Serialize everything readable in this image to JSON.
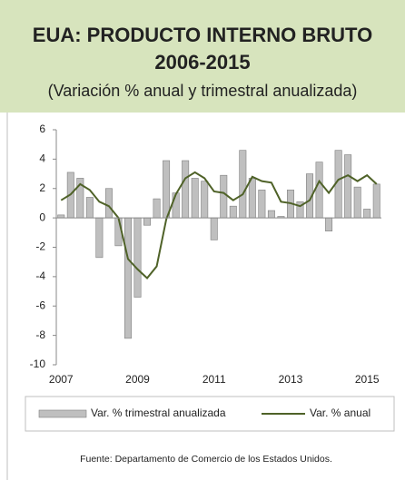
{
  "chart_data": {
    "type": "bar",
    "title": "EUA: PRODUCTO INTERNO BRUTO",
    "title_line2": "2006-2015",
    "subtitle": "(Variación % anual y trimestral anualizada)",
    "source": "Fuente:  Departamento de Comercio de los Estados Unidos.",
    "categories": [
      "2007",
      null,
      null,
      null,
      null,
      null,
      null,
      null,
      "2009",
      null,
      null,
      null,
      null,
      null,
      null,
      null,
      "2011",
      null,
      null,
      null,
      null,
      null,
      null,
      null,
      "2013",
      null,
      null,
      null,
      null,
      null,
      null,
      null,
      "2015",
      null
    ],
    "series": [
      {
        "name": "Var. % trimestral anualizada",
        "type": "bar",
        "color": "#bfbfbf",
        "values": [
          0.2,
          3.1,
          2.7,
          1.4,
          -2.7,
          2.0,
          -1.9,
          -8.2,
          -5.4,
          -0.5,
          1.3,
          3.9,
          1.7,
          3.9,
          2.7,
          2.5,
          -1.5,
          2.9,
          0.8,
          4.6,
          2.7,
          1.9,
          0.5,
          0.1,
          1.9,
          1.1,
          3.0,
          3.8,
          -0.9,
          4.6,
          4.3,
          2.1,
          0.6,
          2.3
        ]
      },
      {
        "name": "Var. % anual",
        "type": "line",
        "color": "#4f6228",
        "values": [
          1.2,
          1.6,
          2.3,
          1.9,
          1.1,
          0.8,
          0.0,
          -2.8,
          -3.5,
          -4.1,
          -3.3,
          -0.1,
          1.6,
          2.7,
          3.1,
          2.7,
          1.8,
          1.7,
          1.2,
          1.6,
          2.8,
          2.5,
          2.4,
          1.1,
          1.0,
          0.8,
          1.2,
          2.5,
          1.7,
          2.6,
          2.9,
          2.5,
          2.9,
          2.3
        ]
      }
    ],
    "ylim": [
      -10,
      6
    ],
    "yticks": [
      -10,
      -8,
      -6,
      -4,
      -2,
      0,
      2,
      4,
      6
    ],
    "grid": false,
    "legend": "bottom"
  }
}
